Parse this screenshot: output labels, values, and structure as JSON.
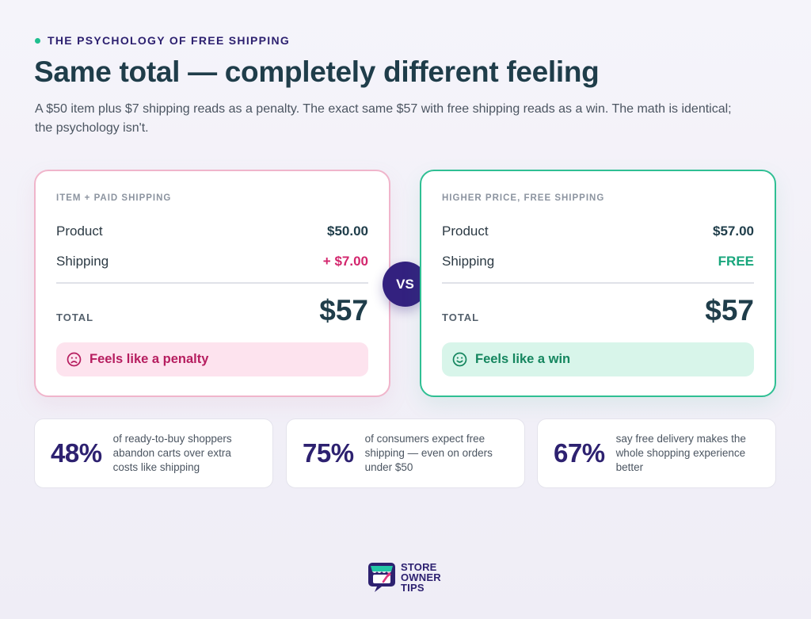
{
  "eyebrow": "THE PSYCHOLOGY OF FREE SHIPPING",
  "headline": "Same total — completely different feeling",
  "subtitle": "A $50 item plus $7 shipping reads as a penalty. The exact same $57 with free shipping reads as a win. The math is identical; the psychology isn't.",
  "colors": {
    "accent": "#2d2170",
    "penalty": "#d3266d",
    "win": "#18a67c",
    "eyebrow_dot": "#1fbf8f"
  },
  "left_card": {
    "label": "ITEM + PAID SHIPPING",
    "product_label": "Product",
    "product_value": "$50.00",
    "shipping_label": "Shipping",
    "shipping_value": "+ $7.00",
    "total_label": "TOTAL",
    "total_value": "$57",
    "feeling_icon": "frown-face-icon",
    "feeling_text": "Feels like a penalty"
  },
  "vs_label": "VS",
  "right_card": {
    "label": "HIGHER PRICE, FREE SHIPPING",
    "product_label": "Product",
    "product_value": "$57.00",
    "shipping_label": "Shipping",
    "shipping_value": "FREE",
    "total_label": "TOTAL",
    "total_value": "$57",
    "feeling_icon": "smile-face-icon",
    "feeling_text": "Feels like a win"
  },
  "stats": [
    {
      "value": "48%",
      "text": "of ready-to-buy shoppers abandon carts over extra costs like shipping"
    },
    {
      "value": "75%",
      "text": "of consumers expect free shipping — even on orders under $50"
    },
    {
      "value": "67%",
      "text": "say free delivery makes the whole shopping experience better"
    }
  ],
  "brand": {
    "logo_icon": "storefront-logo-icon",
    "line1": "STORE",
    "line2": "OWNER",
    "line3": "TIPS"
  }
}
